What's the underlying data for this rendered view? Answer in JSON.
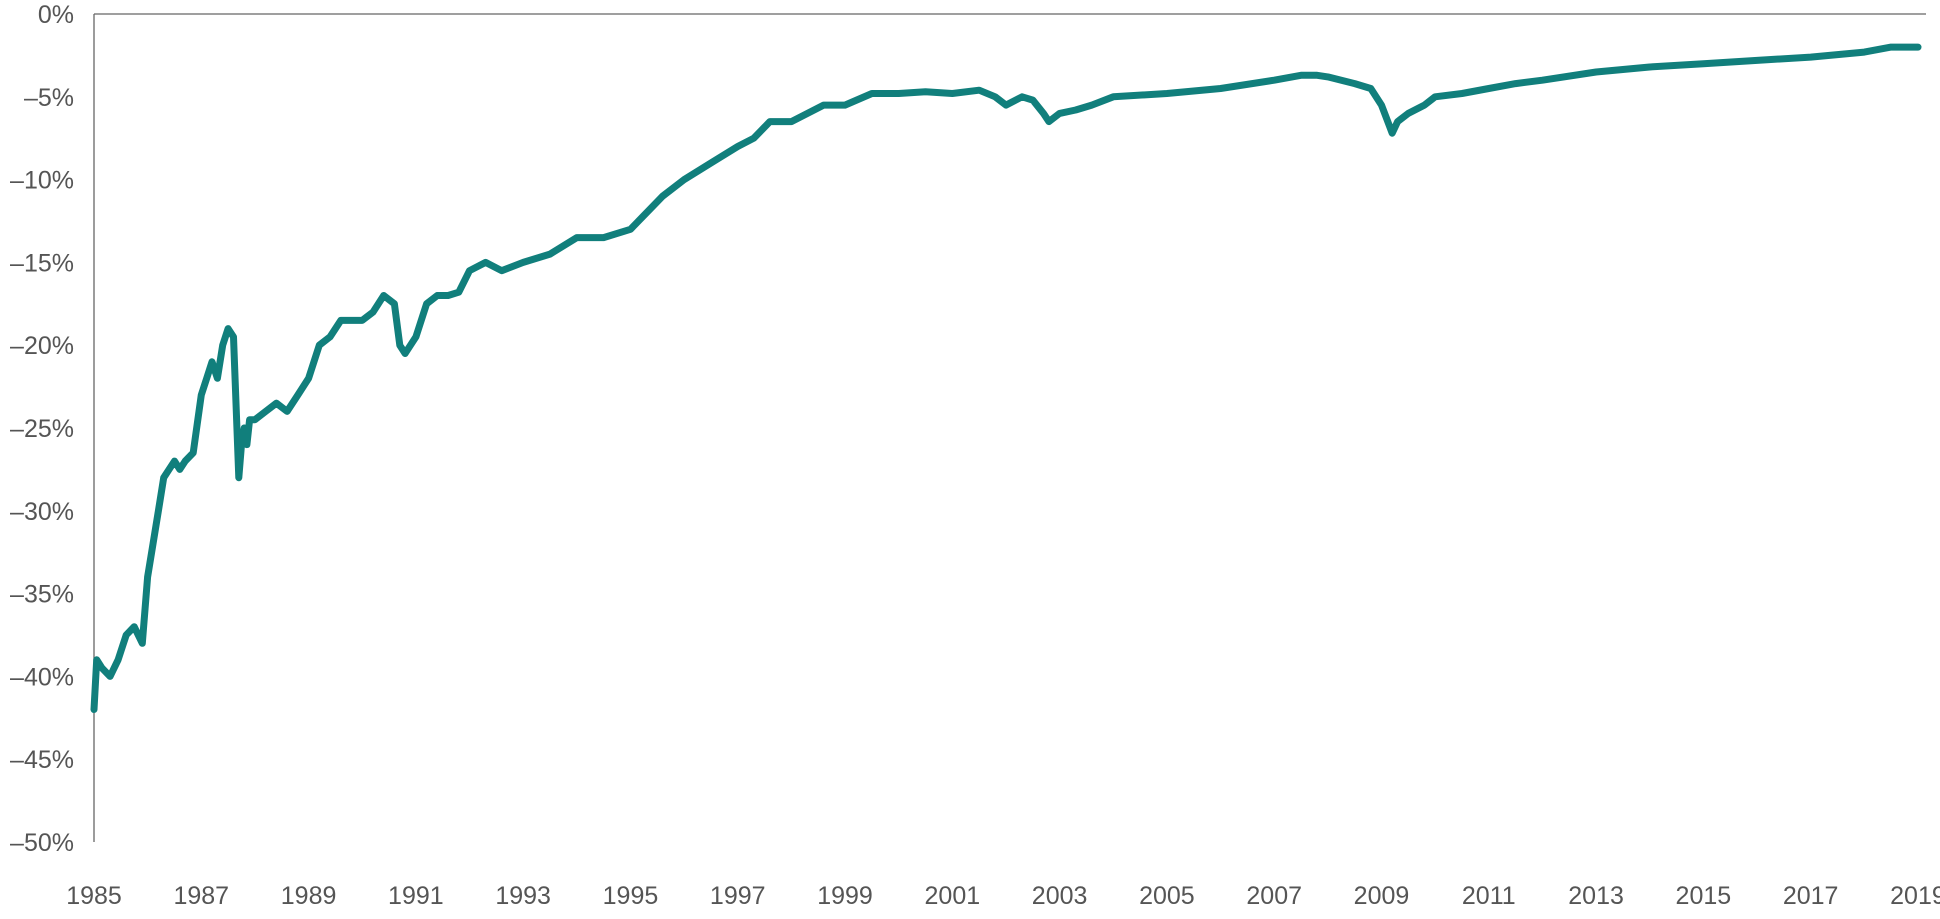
{
  "colors": {
    "series": "#117f7c",
    "axis": "#666666",
    "text": "#555555"
  },
  "chart_data": {
    "type": "line",
    "title": "",
    "xlabel": "",
    "ylabel": "",
    "xlim": [
      1985,
      2019.15
    ],
    "ylim": [
      -50,
      0
    ],
    "y_ticks": [
      0,
      -5,
      -10,
      -15,
      -20,
      -25,
      -30,
      -35,
      -40,
      -45,
      -50
    ],
    "y_tick_labels": [
      "0%",
      "–5%",
      "–10%",
      "–15%",
      "–20%",
      "–25%",
      "–30%",
      "–35%",
      "–40%",
      "–45%",
      "–50%"
    ],
    "x_ticks": [
      1985,
      1987,
      1989,
      1991,
      1993,
      1995,
      1997,
      1999,
      2001,
      2003,
      2005,
      2007,
      2009,
      2011,
      2013,
      2015,
      2017,
      2019
    ],
    "x_tick_labels": [
      "1985",
      "1987",
      "1989",
      "1991",
      "1993",
      "1995",
      "1997",
      "1999",
      "2001",
      "2003",
      "2005",
      "2007",
      "2009",
      "2011",
      "2013",
      "2015",
      "2017",
      "2019"
    ],
    "grid": false,
    "series": [
      {
        "x": [
          1985.0,
          1985.05,
          1985.15,
          1985.3,
          1985.45,
          1985.6,
          1985.75,
          1985.9,
          1986.0,
          1986.1,
          1986.2,
          1986.3,
          1986.4,
          1986.5,
          1986.6,
          1986.7,
          1986.85,
          1987.0,
          1987.1,
          1987.2,
          1987.3,
          1987.4,
          1987.5,
          1987.6,
          1987.7,
          1987.75,
          1987.8,
          1987.85,
          1987.9,
          1988.0,
          1988.2,
          1988.4,
          1988.6,
          1988.8,
          1989.0,
          1989.2,
          1989.4,
          1989.6,
          1989.8,
          1990.0,
          1990.2,
          1990.4,
          1990.6,
          1990.7,
          1990.8,
          1991.0,
          1991.2,
          1991.4,
          1991.6,
          1991.8,
          1992.0,
          1992.3,
          1992.6,
          1993.0,
          1993.5,
          1994.0,
          1994.2,
          1994.5,
          1995.0,
          1995.3,
          1995.6,
          1996.0,
          1996.5,
          1997.0,
          1997.3,
          1997.6,
          1998.0,
          1998.3,
          1998.6,
          1999.0,
          1999.5,
          2000.0,
          2000.5,
          2001.0,
          2001.5,
          2001.8,
          2002.0,
          2002.3,
          2002.5,
          2002.7,
          2002.8,
          2003.0,
          2003.3,
          2003.6,
          2004.0,
          2005.0,
          2006.0,
          2007.0,
          2007.5,
          2007.8,
          2008.0,
          2008.5,
          2008.8,
          2009.0,
          2009.2,
          2009.3,
          2009.5,
          2009.8,
          2010.0,
          2010.5,
          2011.0,
          2011.5,
          2012.0,
          2013.0,
          2014.0,
          2015.0,
          2016.0,
          2017.0,
          2018.0,
          2018.5,
          2019.0
        ],
        "values": [
          -42,
          -39,
          -39.5,
          -40,
          -39,
          -37.5,
          -37,
          -38,
          -34,
          -32,
          -30,
          -28,
          -27.5,
          -27,
          -27.5,
          -27,
          -26.5,
          -23,
          -22,
          -21,
          -22,
          -20,
          -19,
          -19.5,
          -28,
          -26,
          -25,
          -26,
          -24.5,
          -24.5,
          -24,
          -23.5,
          -24,
          -23,
          -22,
          -20,
          -19.5,
          -18.5,
          -18.5,
          -18.5,
          -18,
          -17,
          -17.5,
          -20,
          -20.5,
          -19.5,
          -17.5,
          -17,
          -17,
          -16.8,
          -15.5,
          -15,
          -15.5,
          -15,
          -14.5,
          -13.5,
          -13.5,
          -13.5,
          -13,
          -12,
          -11,
          -10,
          -9,
          -8,
          -7.5,
          -6.5,
          -6.5,
          -6,
          -5.5,
          -5.5,
          -4.8,
          -4.8,
          -4.7,
          -4.8,
          -4.6,
          -5,
          -5.5,
          -5,
          -5.2,
          -6,
          -6.5,
          -6,
          -5.8,
          -5.5,
          -5,
          -4.8,
          -4.5,
          -4,
          -3.7,
          -3.7,
          -3.8,
          -4.2,
          -4.5,
          -5.5,
          -7.2,
          -6.5,
          -6,
          -5.5,
          -5,
          -4.8,
          -4.5,
          -4.2,
          -4,
          -3.5,
          -3.2,
          -3,
          -2.8,
          -2.6,
          -2.3,
          -2.0,
          -2.0
        ]
      }
    ]
  }
}
